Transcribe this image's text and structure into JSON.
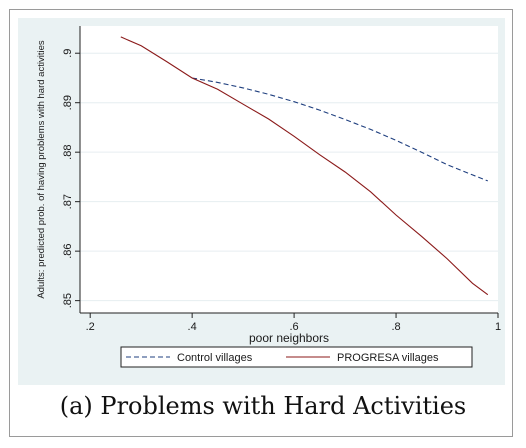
{
  "caption": "(a) Problems with Hard Activities",
  "colors": {
    "outer_background": "#eaf2f3",
    "plot_background": "#ffffff",
    "control_line": "#1f3f7f",
    "progresa_line": "#8b1a1a"
  },
  "chart_data": {
    "type": "line",
    "title": "",
    "xlabel": "poor neighbors",
    "ylabel": "Adults: predicted prob. of having problems with hard activities",
    "xlim": [
      0.18,
      1.0
    ],
    "ylim": [
      0.8475,
      0.9055
    ],
    "xticks": [
      0.2,
      0.4,
      0.6,
      0.8,
      1.0
    ],
    "xtick_labels": [
      ".2",
      ".4",
      ".6",
      ".8",
      "1"
    ],
    "yticks": [
      0.85,
      0.86,
      0.87,
      0.88,
      0.89,
      0.9
    ],
    "ytick_labels": [
      ".85",
      ".86",
      ".87",
      ".88",
      ".89",
      ".9"
    ],
    "grid": true,
    "legend_position": "bottom",
    "series": [
      {
        "name": "Control villages",
        "style": "dashed",
        "color": "#1f3f7f",
        "x": [
          0.4,
          0.45,
          0.5,
          0.55,
          0.6,
          0.65,
          0.7,
          0.75,
          0.8,
          0.85,
          0.9,
          0.95,
          0.98
        ],
        "y": [
          0.895,
          0.8941,
          0.893,
          0.8917,
          0.8902,
          0.8885,
          0.8866,
          0.8846,
          0.8824,
          0.88,
          0.8775,
          0.8754,
          0.8742
        ]
      },
      {
        "name": "PROGRESA villages",
        "style": "solid",
        "color": "#8b1a1a",
        "x": [
          0.26,
          0.3,
          0.35,
          0.4,
          0.45,
          0.5,
          0.55,
          0.6,
          0.65,
          0.7,
          0.75,
          0.8,
          0.85,
          0.9,
          0.95,
          0.98
        ],
        "y": [
          0.9033,
          0.9015,
          0.8983,
          0.895,
          0.8927,
          0.8897,
          0.8867,
          0.8832,
          0.8795,
          0.876,
          0.872,
          0.8673,
          0.863,
          0.8585,
          0.8535,
          0.8512
        ]
      }
    ]
  }
}
